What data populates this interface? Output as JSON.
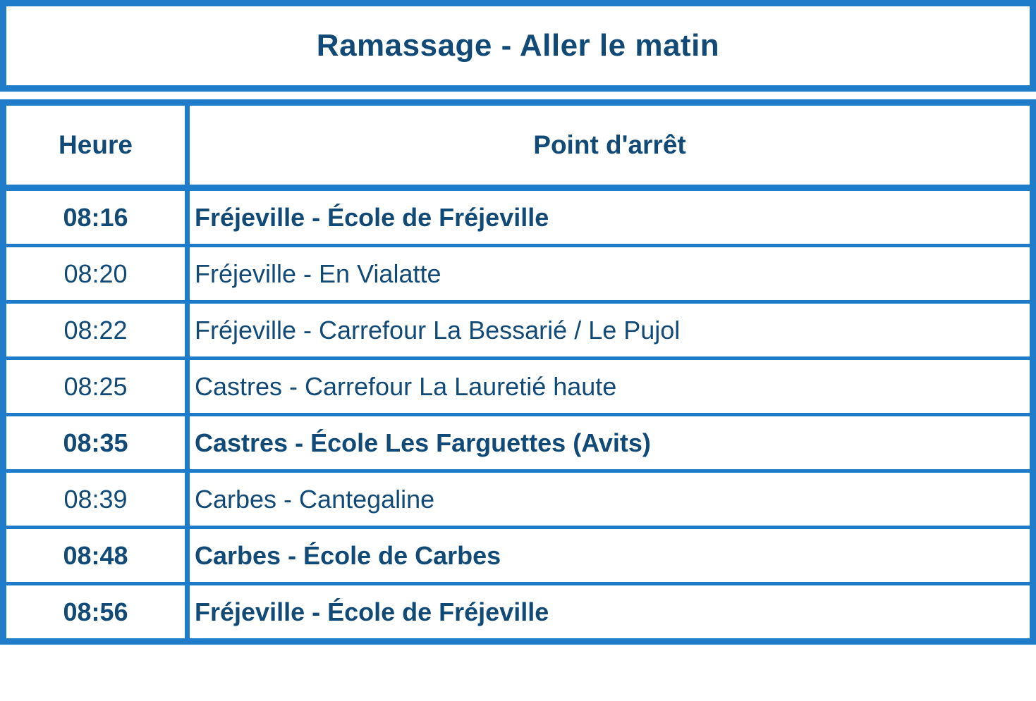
{
  "title": "Ramassage - Aller le matin",
  "colors": {
    "border": "#1f7ccb",
    "text": "#114a77"
  },
  "table": {
    "headers": {
      "time": "Heure",
      "stop": "Point d'arrêt"
    },
    "rows": [
      {
        "time": "08:16",
        "stop": "Fréjeville - École de Fréjeville",
        "bold": true
      },
      {
        "time": "08:20",
        "stop": "Fréjeville - En Vialatte",
        "bold": false
      },
      {
        "time": "08:22",
        "stop": "Fréjeville - Carrefour La Bessarié / Le Pujol",
        "bold": false
      },
      {
        "time": "08:25",
        "stop": "Castres - Carrefour La Lauretié haute",
        "bold": false
      },
      {
        "time": "08:35",
        "stop": "Castres - École Les Farguettes (Avits)",
        "bold": true
      },
      {
        "time": "08:39",
        "stop": "Carbes - Cantegaline",
        "bold": false
      },
      {
        "time": "08:48",
        "stop": "Carbes - École de Carbes",
        "bold": true
      },
      {
        "time": "08:56",
        "stop": "Fréjeville - École de Fréjeville",
        "bold": true
      }
    ]
  }
}
